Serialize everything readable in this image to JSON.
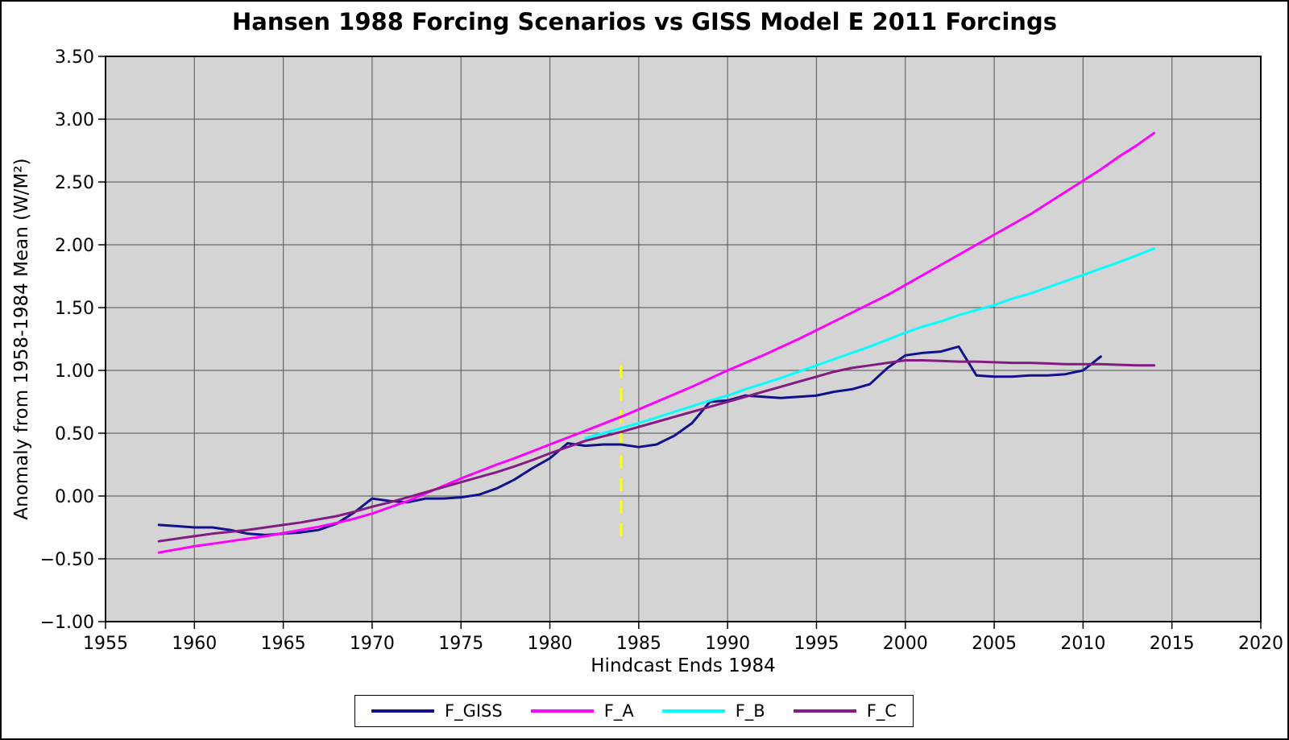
{
  "title": "Hansen 1988 Forcing Scenarios vs GISS Model E 2011 Forcings",
  "axes": {
    "x_label": "Hindcast Ends 1984",
    "y_label": "Anomaly from 1958-1984 Mean (W/M²)",
    "x_tick_labels": [
      "1955",
      "1960",
      "1965",
      "1970",
      "1975",
      "1980",
      "1985",
      "1990",
      "1995",
      "2000",
      "2005",
      "2010",
      "2015",
      "2020"
    ],
    "y_tick_labels": [
      "3.50",
      "3.00",
      "2.50",
      "2.00",
      "1.50",
      "1.00",
      "0.50",
      "0.00",
      "−0.50",
      "−1.00"
    ]
  },
  "legend": {
    "items": [
      {
        "label": "F_GISS",
        "color": "#11118c"
      },
      {
        "label": "F_A",
        "color": "#ff00ff"
      },
      {
        "label": "F_B",
        "color": "#00ffff"
      },
      {
        "label": "F_C",
        "color": "#821c82"
      }
    ]
  },
  "colors": {
    "figure_background": "#ffffff",
    "plot_background": "#d4d4d4",
    "gridline": "#676767",
    "plot_border": "#000000",
    "annotation_line": "#ffff00",
    "text": "#000000"
  },
  "chart_data": {
    "type": "line",
    "title": "Hansen 1988 Forcing Scenarios vs GISS Model E 2011 Forcings",
    "xlabel": "Hindcast Ends 1984",
    "ylabel": "Anomaly from 1958-1984 Mean (W/M²)",
    "xlim": [
      1955,
      2020
    ],
    "ylim": [
      -1.0,
      3.5
    ],
    "x_tick_step": 5,
    "y_tick_step": 0.5,
    "grid": true,
    "legend_position": "bottom-center",
    "annotation": {
      "type": "vline",
      "meaning": "hindcast end marker 1984",
      "x": 1984,
      "y_from": -0.32,
      "y_to": 1.12,
      "style": "dashed",
      "color": "#ffff00"
    },
    "series": [
      {
        "name": "F_GISS",
        "color": "#11118c",
        "x_start": 1958,
        "x_step": 1,
        "values": [
          -0.23,
          -0.24,
          -0.25,
          -0.25,
          -0.27,
          -0.3,
          -0.31,
          -0.3,
          -0.29,
          -0.27,
          -0.22,
          -0.13,
          -0.02,
          -0.04,
          -0.05,
          -0.02,
          -0.02,
          -0.01,
          0.01,
          0.06,
          0.13,
          0.22,
          0.3,
          0.42,
          0.4,
          0.41,
          0.41,
          0.39,
          0.41,
          0.48,
          0.58,
          0.75,
          0.76,
          0.8,
          0.79,
          0.78,
          0.79,
          0.8,
          0.83,
          0.85,
          0.89,
          1.02,
          1.12,
          1.14,
          1.15,
          1.19,
          0.96,
          0.95,
          0.95,
          0.96,
          0.96,
          0.97,
          1.0,
          1.11
        ]
      },
      {
        "name": "F_A",
        "color": "#ff00ff",
        "x_start": 1958,
        "x_step": 1,
        "values": [
          -0.45,
          -0.425,
          -0.4,
          -0.38,
          -0.36,
          -0.34,
          -0.32,
          -0.295,
          -0.27,
          -0.245,
          -0.215,
          -0.18,
          -0.14,
          -0.09,
          -0.04,
          0.02,
          0.08,
          0.14,
          0.195,
          0.25,
          0.3,
          0.355,
          0.41,
          0.465,
          0.52,
          0.575,
          0.63,
          0.69,
          0.75,
          0.81,
          0.87,
          0.935,
          1.0,
          1.06,
          1.12,
          1.185,
          1.25,
          1.32,
          1.39,
          1.46,
          1.53,
          1.6,
          1.68,
          1.76,
          1.84,
          1.92,
          2.0,
          2.08,
          2.16,
          2.24,
          2.33,
          2.42,
          2.51,
          2.6,
          2.7,
          2.79,
          2.89
        ]
      },
      {
        "name": "F_B",
        "color": "#00ffff",
        "x_start": 1982,
        "x_step": 1,
        "values": [
          0.46,
          0.5,
          0.54,
          0.58,
          0.625,
          0.67,
          0.715,
          0.76,
          0.8,
          0.85,
          0.895,
          0.94,
          0.99,
          1.04,
          1.09,
          1.14,
          1.19,
          1.245,
          1.3,
          1.35,
          1.39,
          1.44,
          1.48,
          1.52,
          1.57,
          1.61,
          1.66,
          1.71,
          1.76,
          1.81,
          1.86,
          1.915,
          1.97
        ]
      },
      {
        "name": "F_C",
        "color": "#821c82",
        "x_start": 1958,
        "x_step": 1,
        "values": [
          -0.36,
          -0.34,
          -0.32,
          -0.3,
          -0.285,
          -0.27,
          -0.25,
          -0.23,
          -0.21,
          -0.185,
          -0.16,
          -0.125,
          -0.085,
          -0.05,
          -0.01,
          0.03,
          0.07,
          0.11,
          0.15,
          0.19,
          0.235,
          0.285,
          0.34,
          0.39,
          0.44,
          0.475,
          0.51,
          0.55,
          0.59,
          0.63,
          0.67,
          0.71,
          0.75,
          0.79,
          0.83,
          0.87,
          0.91,
          0.95,
          0.99,
          1.02,
          1.04,
          1.06,
          1.08,
          1.08,
          1.075,
          1.07,
          1.07,
          1.065,
          1.06,
          1.06,
          1.055,
          1.05,
          1.05,
          1.05,
          1.045,
          1.04,
          1.04
        ]
      }
    ]
  }
}
